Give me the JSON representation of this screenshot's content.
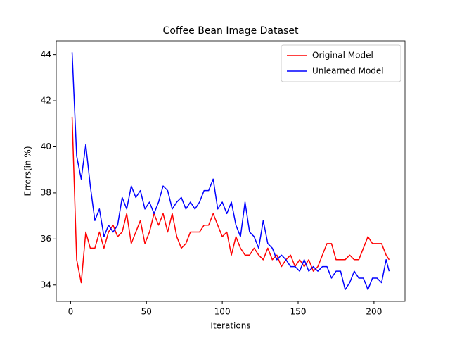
{
  "chart_data": {
    "type": "line",
    "title": "Coffee Bean Image Dataset",
    "x_label": "Iterations",
    "y_label": "Errors(in %)",
    "x": [
      1,
      4,
      7,
      10,
      13,
      16,
      19,
      22,
      25,
      28,
      31,
      34,
      37,
      40,
      43,
      46,
      49,
      52,
      55,
      58,
      61,
      64,
      67,
      70,
      73,
      76,
      79,
      82,
      85,
      88,
      91,
      94,
      97,
      100,
      103,
      106,
      109,
      112,
      115,
      118,
      121,
      124,
      127,
      130,
      133,
      136,
      139,
      142,
      145,
      148,
      151,
      154,
      157,
      160,
      163,
      166,
      169,
      172,
      175,
      178,
      181,
      184,
      187,
      190,
      193,
      196,
      199,
      202,
      205,
      208,
      210
    ],
    "series": [
      {
        "name": "Original Model",
        "color": "#ff0000",
        "values": [
          41.3,
          35.1,
          34.1,
          36.3,
          35.6,
          35.6,
          36.3,
          35.6,
          36.3,
          36.6,
          36.1,
          36.3,
          37.1,
          35.8,
          36.3,
          36.8,
          35.8,
          36.3,
          37.1,
          36.6,
          37.1,
          36.3,
          37.1,
          36.1,
          35.6,
          35.8,
          36.3,
          36.3,
          36.3,
          36.6,
          36.6,
          37.1,
          36.6,
          36.1,
          36.3,
          35.3,
          36.1,
          35.6,
          35.3,
          35.3,
          35.6,
          35.3,
          35.1,
          35.6,
          35.1,
          35.3,
          34.8,
          35.1,
          35.3,
          34.8,
          35.1,
          34.8,
          35.1,
          34.6,
          34.8,
          35.3,
          35.8,
          35.8,
          35.1,
          35.1,
          35.1,
          35.3,
          35.1,
          35.1,
          35.6,
          36.1,
          35.8,
          35.8,
          35.8,
          35.3,
          35.1
        ]
      },
      {
        "name": "Unlearned Model",
        "color": "#0000ff",
        "values": [
          44.1,
          39.6,
          38.6,
          40.1,
          38.3,
          36.8,
          37.3,
          36.1,
          36.6,
          36.3,
          36.6,
          37.8,
          37.3,
          38.3,
          37.8,
          38.1,
          37.3,
          37.6,
          37.1,
          37.6,
          38.3,
          38.1,
          37.3,
          37.6,
          37.8,
          37.3,
          37.6,
          37.3,
          37.6,
          38.1,
          38.1,
          38.6,
          37.3,
          37.6,
          37.1,
          37.6,
          36.6,
          36.1,
          37.6,
          36.3,
          36.1,
          35.6,
          36.8,
          35.8,
          35.6,
          35.1,
          35.3,
          35.1,
          34.8,
          34.8,
          34.6,
          35.1,
          34.6,
          34.8,
          34.6,
          34.8,
          34.8,
          34.3,
          34.6,
          34.6,
          33.8,
          34.1,
          34.6,
          34.3,
          34.3,
          33.8,
          34.3,
          34.3,
          34.1,
          35.1,
          34.6
        ]
      }
    ],
    "xlim": [
      -9.45,
      220.45
    ],
    "xticks": [
      0,
      50,
      100,
      150,
      200
    ],
    "ylim": [
      33.29,
      44.6
    ],
    "yticks": [
      34,
      36,
      38,
      40,
      42,
      44
    ],
    "grid": false,
    "legend": "upper right"
  }
}
